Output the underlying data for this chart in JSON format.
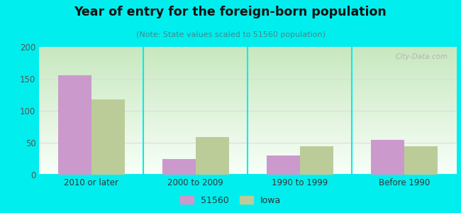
{
  "title": "Year of entry for the foreign-born population",
  "subtitle": "(Note: State values scaled to 51560 population)",
  "categories": [
    "2010 or later",
    "2000 to 2009",
    "1990 to 1999",
    "Before 1990"
  ],
  "values_51560": [
    156,
    24,
    30,
    55
  ],
  "values_iowa": [
    118,
    59,
    45,
    45
  ],
  "color_51560": "#cc99cc",
  "color_iowa": "#bbcc99",
  "ylim": [
    0,
    200
  ],
  "yticks": [
    0,
    50,
    100,
    150,
    200
  ],
  "background_outer": "#00eeee",
  "background_inner_top": "#f5fff5",
  "background_inner_bottom": "#d8eecf",
  "legend_label_51560": "51560",
  "legend_label_iowa": "Iowa",
  "bar_width": 0.32
}
